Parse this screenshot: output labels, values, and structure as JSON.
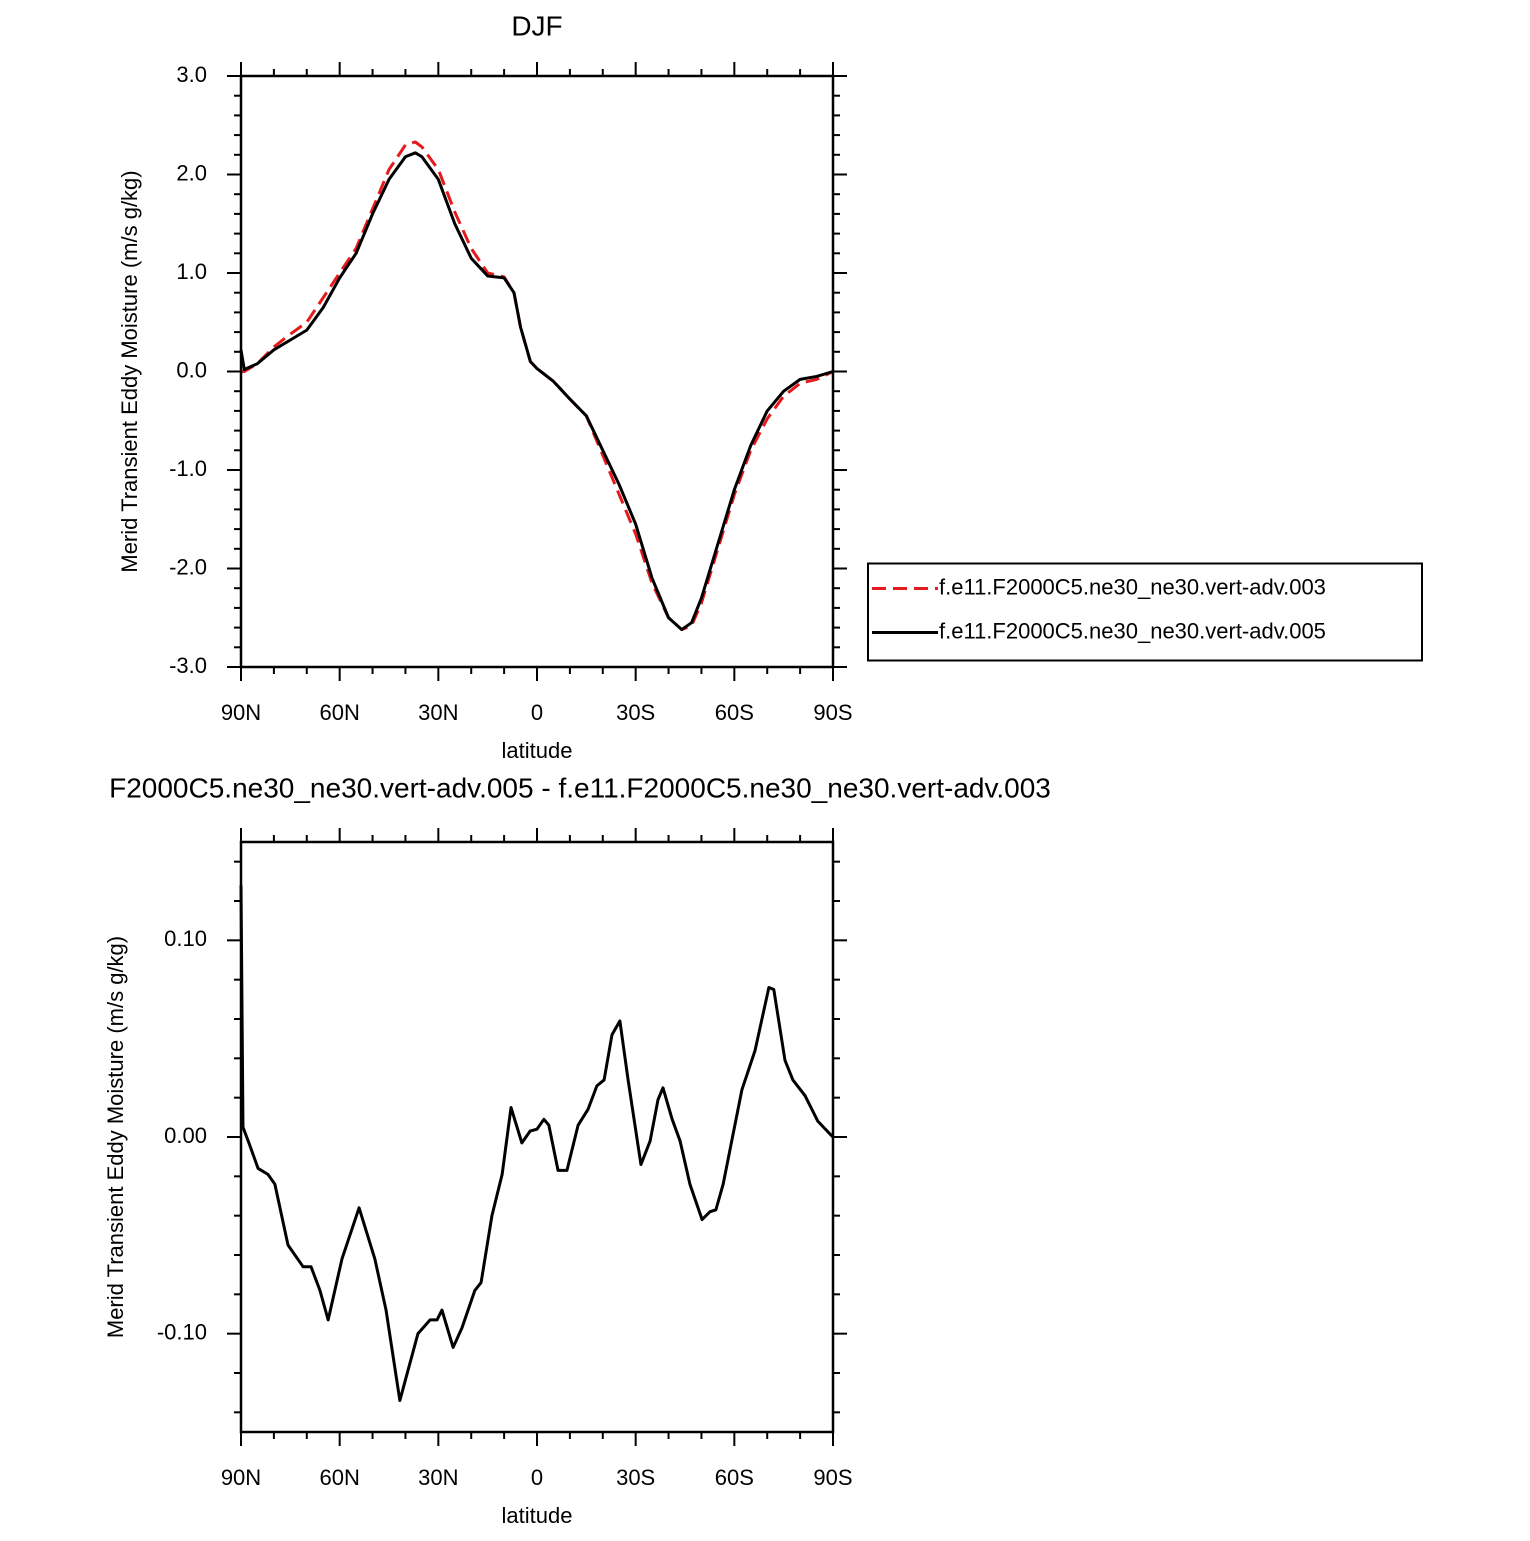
{
  "chart_data": [
    {
      "type": "line",
      "title": "DJF",
      "xlabel": "latitude",
      "ylabel": "Merid Transient Eddy Moisture (m/s g/kg)",
      "x": [
        90,
        89,
        85,
        80,
        75,
        70,
        65,
        60,
        55,
        50,
        45,
        40,
        37,
        35,
        30,
        25,
        20,
        15,
        10,
        7,
        5,
        2,
        0,
        -5,
        -10,
        -15,
        -20,
        -25,
        -30,
        -35,
        -40,
        -44,
        -47,
        -50,
        -55,
        -60,
        -65,
        -70,
        -75,
        -80,
        -85,
        -90
      ],
      "series": [
        {
          "name": "f.e11.F2000C5.ne30_ne30.vert-adv.003",
          "color": "#e41a1c",
          "linestyle": "dashed",
          "values": [
            0.0,
            0.0,
            0.08,
            0.25,
            0.38,
            0.5,
            0.75,
            1.0,
            1.25,
            1.65,
            2.05,
            2.3,
            2.33,
            2.28,
            2.05,
            1.62,
            1.25,
            1.0,
            0.96,
            0.8,
            0.45,
            0.1,
            0.03,
            -0.1,
            -0.28,
            -0.45,
            -0.85,
            -1.25,
            -1.65,
            -2.15,
            -2.5,
            -2.62,
            -2.58,
            -2.35,
            -1.8,
            -1.25,
            -0.8,
            -0.48,
            -0.25,
            -0.12,
            -0.08,
            0.0
          ]
        },
        {
          "name": "f.e11.F2000C5.ne30_ne30.vert-adv.005",
          "color": "#000000",
          "linestyle": "solid",
          "values": [
            0.22,
            0.02,
            0.08,
            0.22,
            0.32,
            0.42,
            0.65,
            0.95,
            1.2,
            1.6,
            1.95,
            2.18,
            2.22,
            2.18,
            1.95,
            1.5,
            1.15,
            0.97,
            0.95,
            0.8,
            0.45,
            0.1,
            0.03,
            -0.1,
            -0.28,
            -0.45,
            -0.8,
            -1.15,
            -1.55,
            -2.1,
            -2.5,
            -2.62,
            -2.55,
            -2.3,
            -1.75,
            -1.2,
            -0.75,
            -0.4,
            -0.2,
            -0.08,
            -0.05,
            0.0
          ]
        }
      ],
      "xlim": [
        90,
        -90
      ],
      "xticks": [
        {
          "value": 90,
          "label": "90N"
        },
        {
          "value": 60,
          "label": "60N"
        },
        {
          "value": 30,
          "label": "30N"
        },
        0,
        {
          "value": -30,
          "label": "30S"
        },
        {
          "value": -60,
          "label": "60S"
        },
        {
          "value": -90,
          "label": "90S"
        }
      ],
      "xminorticks": [
        80,
        70,
        50,
        40,
        20,
        10,
        -10,
        -20,
        -40,
        -50,
        -70,
        -80
      ],
      "ylim": [
        -3,
        3
      ],
      "yticks": [
        {
          "value": 3,
          "label": "3.0"
        },
        {
          "value": 2,
          "label": "2.0"
        },
        {
          "value": 1,
          "label": "1.0"
        },
        {
          "value": 0,
          "label": "0.0"
        },
        {
          "value": -1,
          "label": "-1.0"
        },
        {
          "value": -2,
          "label": "-2.0"
        },
        {
          "value": -3,
          "label": "-3.0"
        }
      ],
      "yminorticks": [
        2.8,
        2.6,
        2.4,
        2.2,
        1.8,
        1.6,
        1.4,
        1.2,
        0.8,
        0.6,
        0.4,
        0.2,
        -0.2,
        -0.4,
        -0.6,
        -0.8,
        -1.2,
        -1.4,
        -1.6,
        -1.8,
        -2.2,
        -2.4,
        -2.6,
        -2.8
      ],
      "legend": "right"
    },
    {
      "type": "line",
      "title": "F2000C5.ne30_ne30.vert-adv.005 - f.e11.F2000C5.ne30_ne30.vert-adv.003",
      "xlabel": "latitude",
      "ylabel": "Merid Transient Eddy Moisture (m/s g/kg)",
      "x": [
        90,
        89.4,
        87.6,
        84.8,
        81.8,
        79.7,
        75.7,
        71.1,
        68.7,
        66,
        63.5,
        59.3,
        54.1,
        49.3,
        45.9,
        41.7,
        36.2,
        32.5,
        30.4,
        28.9,
        25.5,
        22.8,
        18.9,
        17,
        13.7,
        10.6,
        7.9,
        4.6,
        2.1,
        0,
        -2.1,
        -3.6,
        -6.4,
        -9.1,
        -12.5,
        -15.5,
        -18.2,
        -20.4,
        -22.8,
        -25.2,
        -27.7,
        -31.6,
        -34.4,
        -36.8,
        -38.3,
        -41.1,
        -43.5,
        -46.5,
        -50.2,
        -52.6,
        -54.4,
        -56.6,
        -62.3,
        -66.3,
        -70.5,
        -72,
        -75.4,
        -77.8,
        -81.5,
        -85.4,
        -89.4,
        -90
      ],
      "values": [
        0.128,
        0.005,
        -0.003,
        -0.016,
        -0.019,
        -0.024,
        -0.055,
        -0.066,
        -0.066,
        -0.078,
        -0.093,
        -0.062,
        -0.036,
        -0.062,
        -0.088,
        -0.134,
        -0.1,
        -0.093,
        -0.093,
        -0.088,
        -0.107,
        -0.097,
        -0.078,
        -0.074,
        -0.04,
        -0.019,
        0.015,
        -0.003,
        0.003,
        0.004,
        0.009,
        0.006,
        -0.017,
        -0.017,
        0.006,
        0.014,
        0.026,
        0.029,
        0.052,
        0.059,
        0.029,
        -0.014,
        -0.002,
        0.019,
        0.025,
        0.009,
        -0.002,
        -0.024,
        -0.042,
        -0.038,
        -0.037,
        -0.024,
        0.024,
        0.044,
        0.076,
        0.075,
        0.039,
        0.029,
        0.021,
        0.008,
        0.001,
        0.0
      ],
      "color": "#000000",
      "xlim": [
        90,
        -90
      ],
      "xticks": [
        {
          "value": 90,
          "label": "90N"
        },
        {
          "value": 60,
          "label": "60N"
        },
        {
          "value": 30,
          "label": "30N"
        },
        0,
        {
          "value": -30,
          "label": "30S"
        },
        {
          "value": -60,
          "label": "60S"
        },
        {
          "value": -90,
          "label": "90S"
        }
      ],
      "xminorticks": [
        80,
        70,
        50,
        40,
        20,
        10,
        -10,
        -20,
        -40,
        -50,
        -70,
        -80
      ],
      "ylim": [
        -0.15,
        0.15
      ],
      "yticks": [
        {
          "value": 0.1,
          "label": "0.10"
        },
        {
          "value": 0,
          "label": "0.00"
        },
        {
          "value": -0.1,
          "label": "-0.10"
        }
      ],
      "yminorticks": [
        0.14,
        0.12,
        0.08,
        0.06,
        0.04,
        0.02,
        -0.02,
        -0.04,
        -0.06,
        -0.08,
        -0.12,
        -0.14
      ]
    }
  ]
}
